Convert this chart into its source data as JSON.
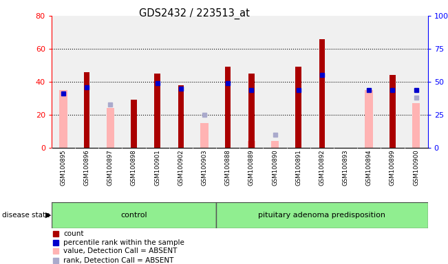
{
  "title": "GDS2432 / 223513_at",
  "samples": [
    "GSM100895",
    "GSM100896",
    "GSM100897",
    "GSM100898",
    "GSM100901",
    "GSM100902",
    "GSM100903",
    "GSM100888",
    "GSM100889",
    "GSM100890",
    "GSM100891",
    "GSM100892",
    "GSM100893",
    "GSM100894",
    "GSM100899",
    "GSM100900"
  ],
  "count": [
    0,
    46,
    0,
    29,
    45,
    38,
    0,
    49,
    45,
    0,
    49,
    66,
    0,
    0,
    44,
    0
  ],
  "percentile_rank": [
    41,
    46,
    0,
    0,
    49,
    45,
    0,
    49,
    44,
    0,
    44,
    55,
    0,
    44,
    44,
    44
  ],
  "value_absent": [
    35,
    0,
    24,
    0,
    0,
    0,
    15,
    0,
    4,
    4,
    0,
    0,
    0,
    35,
    0,
    27
  ],
  "rank_absent": [
    0,
    0,
    33,
    0,
    0,
    0,
    25,
    0,
    0,
    10,
    0,
    0,
    0,
    0,
    0,
    38
  ],
  "count_color": "#aa0000",
  "percentile_color": "#0000cc",
  "value_absent_color": "#ffb3b3",
  "rank_absent_color": "#aaaacc",
  "group1_label": "control",
  "group1_count": 7,
  "group2_label": "pituitary adenoma predisposition",
  "group2_count": 9,
  "ylim_left": [
    0,
    80
  ],
  "ylim_right": [
    0,
    100
  ],
  "yticks_left": [
    0,
    20,
    40,
    60,
    80
  ],
  "yticks_right": [
    0,
    25,
    50,
    75,
    100
  ],
  "ytick_labels_right": [
    "0",
    "25",
    "50",
    "75",
    "100%"
  ],
  "grid_lines": [
    20,
    40,
    60
  ],
  "bar_width": 0.45,
  "plot_bg": "#f0f0f0",
  "label_bg": "#d3d3d3",
  "group_color": "#90ee90",
  "group_edge": "#555555"
}
